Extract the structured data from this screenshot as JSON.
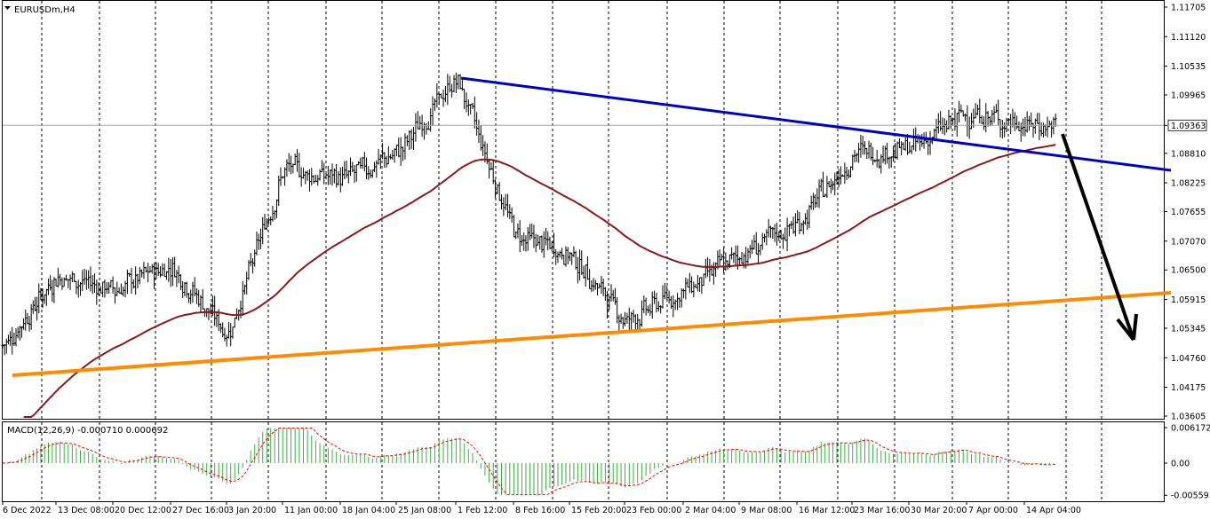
{
  "chart_data": [
    {
      "type": "candlestick",
      "symbol_label": "EURUSDm,H4",
      "symbol_menu_icon": "triangle-down-icon",
      "colors": {
        "bars": "#000000",
        "moving_average": "#8b1a1a",
        "trendline_upper": "#0000cc",
        "trendline_lower": "#ff8c00",
        "arrow": "#000000",
        "grid": "#000000",
        "price_line": "#a0a8a8"
      },
      "grid": "vertical dashed",
      "ylim": [
        1.036,
        1.117
      ],
      "y_ticks": [
        "1.11705",
        "1.11120",
        "1.10535",
        "1.09965",
        "1.09363",
        "1.08810",
        "1.08225",
        "1.07655",
        "1.07070",
        "1.06500",
        "1.05915",
        "1.05345",
        "1.04760",
        "1.04175",
        "1.03605"
      ],
      "current_price": "1.09363",
      "x_ticks": [
        "6 Dec 2022",
        "13 Dec 08:00",
        "20 Dec 12:00",
        "27 Dec 16:00",
        "3 Jan 20:00",
        "11 Jan 00:00",
        "18 Jan 04:00",
        "25 Jan 08:00",
        "1 Feb 12:00",
        "8 Feb 16:00",
        "15 Feb 20:00",
        "23 Feb 00:00",
        "2 Mar 04:00",
        "9 Mar 08:00",
        "16 Mar 12:00",
        "23 Mar 16:00",
        "30 Mar 20:00",
        "7 Apr 00:00",
        "14 Apr 04:00"
      ],
      "price_path": [
        [
          "6 Dec 2022",
          1.05
        ],
        [
          "13 Dec 08:00",
          1.064
        ],
        [
          "20 Dec 12:00",
          1.061
        ],
        [
          "27 Dec 16:00",
          1.066
        ],
        [
          "3 Jan 20:00",
          1.052
        ],
        [
          "11 Jan 00:00",
          1.085
        ],
        [
          "18 Jan 04:00",
          1.083
        ],
        [
          "25 Jan 08:00",
          1.088
        ],
        [
          "1 Feb 12:00",
          1.103
        ],
        [
          "8 Feb 16:00",
          1.072
        ],
        [
          "15 Feb 20:00",
          1.068
        ],
        [
          "23 Feb 00:00",
          1.055
        ],
        [
          "2 Mar 04:00",
          1.061
        ],
        [
          "9 Mar 08:00",
          1.068
        ],
        [
          "16 Mar 12:00",
          1.074
        ],
        [
          "23 Mar 16:00",
          1.088
        ],
        [
          "30 Mar 20:00",
          1.089
        ],
        [
          "7 Apr 00:00",
          1.096
        ],
        [
          "14 Apr 04:00",
          1.0936
        ]
      ],
      "annotations": [
        "upper blue trendline from the 2 Feb high sloping down",
        "lower orange trendline from the 6 Dec low sloping up",
        "black arrow pointing down toward the orange trendline"
      ]
    },
    {
      "type": "histogram",
      "indicator_label": "MACD(12,26,9) -0.000710 0.000692",
      "colors": {
        "histogram": "#3cb043",
        "signal": "#ff0000"
      },
      "y_ticks": [
        "0.006172",
        "0.00",
        "-0.005593"
      ],
      "ylim": [
        -0.005593,
        0.006172
      ]
    }
  ]
}
